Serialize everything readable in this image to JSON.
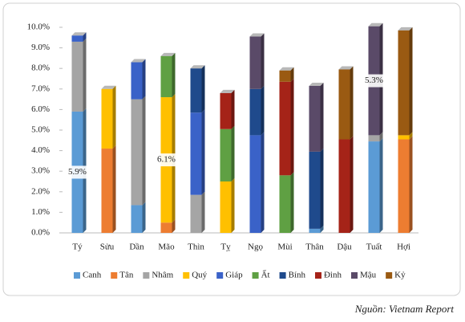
{
  "chart_data": {
    "type": "stacked-bar",
    "categories": [
      "Tý",
      "Sửu",
      "Dần",
      "Mão",
      "Thìn",
      "Tỵ",
      "Ngọ",
      "Mùi",
      "Thân",
      "Dậu",
      "Tuất",
      "Hợi"
    ],
    "series": [
      {
        "name": "Canh",
        "color": "#5b9bd5",
        "values": [
          5.9,
          null,
          1.35,
          null,
          null,
          null,
          null,
          null,
          0.2,
          null,
          4.45,
          null
        ],
        "value_labels": [
          "5.9%",
          null,
          null,
          null,
          null,
          null,
          null,
          null,
          null,
          null,
          null,
          null
        ]
      },
      {
        "name": "Tân",
        "color": "#ed7d31",
        "values": [
          null,
          4.1,
          null,
          0.5,
          null,
          null,
          null,
          null,
          null,
          null,
          null,
          4.55
        ]
      },
      {
        "name": "Nhâm",
        "color": "#a5a5a5",
        "values": [
          3.4,
          null,
          5.15,
          null,
          1.85,
          null,
          null,
          null,
          null,
          null,
          0.3,
          null
        ]
      },
      {
        "name": "Quý",
        "color": "#ffc000",
        "values": [
          null,
          2.9,
          null,
          6.1,
          null,
          2.5,
          null,
          null,
          null,
          null,
          null,
          0.2
        ],
        "value_labels": [
          null,
          null,
          null,
          "6.1%",
          null,
          null,
          null,
          null,
          null,
          null,
          null,
          null
        ]
      },
      {
        "name": "Giáp",
        "color": "#3a62c8",
        "values": [
          0.3,
          null,
          1.8,
          null,
          4.0,
          null,
          4.75,
          null,
          null,
          null,
          null,
          null
        ]
      },
      {
        "name": "Ất",
        "color": "#5fa043",
        "values": [
          null,
          null,
          null,
          2.0,
          null,
          2.55,
          null,
          2.8,
          null,
          null,
          null,
          null
        ]
      },
      {
        "name": "Bính",
        "color": "#1f4a8c",
        "values": [
          null,
          null,
          null,
          null,
          2.15,
          null,
          2.25,
          null,
          3.75,
          null,
          null,
          null
        ]
      },
      {
        "name": "Đinh",
        "color": "#a52318",
        "values": [
          null,
          null,
          null,
          null,
          null,
          1.75,
          null,
          4.55,
          null,
          4.55,
          null,
          null
        ]
      },
      {
        "name": "Mậu",
        "color": "#5a4a68",
        "values": [
          null,
          null,
          null,
          null,
          null,
          null,
          2.55,
          null,
          3.2,
          null,
          5.3,
          null
        ],
        "value_labels": [
          null,
          null,
          null,
          null,
          null,
          null,
          null,
          null,
          null,
          null,
          "5.3%",
          null
        ]
      },
      {
        "name": "Kỷ",
        "color": "#9a5a12",
        "values": [
          null,
          null,
          null,
          null,
          null,
          null,
          null,
          0.55,
          null,
          3.4,
          null,
          5.1
        ]
      }
    ],
    "ylim": [
      0,
      10
    ],
    "yticks": [
      {
        "value": 0,
        "label": "0.0%"
      },
      {
        "value": 1,
        "label": "1.0%"
      },
      {
        "value": 2,
        "label": "2.0%"
      },
      {
        "value": 3,
        "label": "3.0%"
      },
      {
        "value": 4,
        "label": "4.0%"
      },
      {
        "value": 5,
        "label": "5.0%"
      },
      {
        "value": 6,
        "label": "6.0%"
      },
      {
        "value": 7,
        "label": "7.0%"
      },
      {
        "value": 8,
        "label": "8.0%"
      },
      {
        "value": 9,
        "label": "9.0%"
      },
      {
        "value": 10,
        "label": "10.0%"
      }
    ],
    "legend": "bottom",
    "source": "Nguồn: Vietnam Report"
  }
}
